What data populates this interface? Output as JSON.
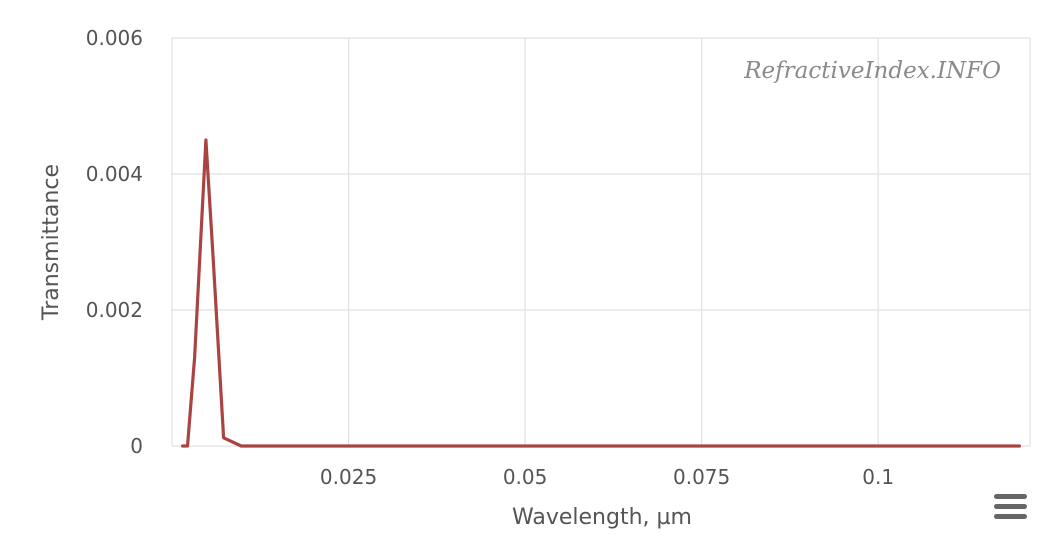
{
  "chart_data": {
    "type": "line",
    "title": "",
    "xlabel": "Wavelength, µm",
    "ylabel": "Transmittance",
    "xlim": [
      0.0,
      0.1215
    ],
    "ylim": [
      0,
      0.006
    ],
    "x_ticks": [
      0.025,
      0.05,
      0.075,
      0.1
    ],
    "x_tick_labels": [
      "0.025",
      "0.05",
      "0.075",
      "0.1"
    ],
    "y_ticks": [
      0,
      0.002,
      0.004,
      0.006
    ],
    "y_tick_labels": [
      "0",
      "0.002",
      "0.004",
      "0.006"
    ],
    "grid": true,
    "legend": "none",
    "series": [
      {
        "color": "#a94442",
        "x": [
          0.0015,
          0.0022,
          0.0032,
          0.0048,
          0.0058,
          0.0073,
          0.0098,
          0.0103,
          0.0125,
          0.0135,
          0.02,
          0.04,
          0.06,
          0.08,
          0.1,
          0.12
        ],
        "y": [
          0.0,
          0.0,
          0.0013,
          0.0045,
          0.0028,
          0.00012,
          0.0,
          0.0,
          0.0,
          0.0,
          0.0,
          0.0,
          0.0,
          0.0,
          0.0,
          0.0
        ]
      }
    ]
  },
  "watermark": "RefractiveIndex.INFO",
  "menu_icon": "hamburger-menu-icon"
}
